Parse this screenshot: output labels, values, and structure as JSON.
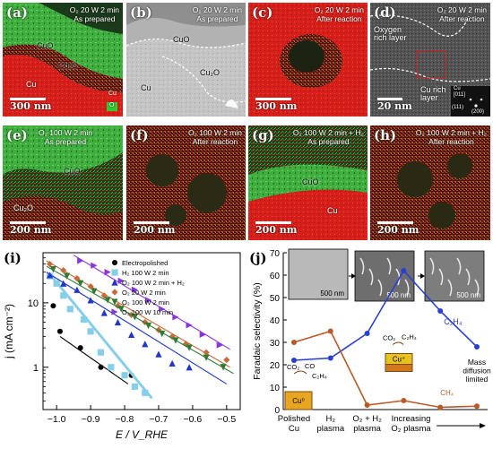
{
  "panels": [
    {
      "label": "(a)",
      "caption_l1": "O₂ 20 W 2 min",
      "caption_l2": "As prepared",
      "scale": "300 nm",
      "phases": {
        "cuo": "CuO",
        "cu2o": "Cu₂O",
        "cu": "Cu"
      },
      "legend": {
        "cu": "Cu",
        "o": "O"
      }
    },
    {
      "label": "(b)",
      "caption_l1": "O₂ 20 W 2 min",
      "caption_l2": "As prepared",
      "phases": {
        "cuo": "CuO",
        "cu2o": "Cu₂O",
        "cu": "Cu"
      }
    },
    {
      "label": "(c)",
      "caption_l1": "O₂ 20 W 2 min",
      "caption_l2": "After reaction",
      "scale": "300 nm"
    },
    {
      "label": "(d)",
      "caption_l1": "O₂ 20 W 2 min",
      "caption_l2": "After reaction",
      "scale": "20 nm",
      "notes": {
        "oxy1": "Oxygen",
        "oxy2": "rich layer",
        "curich1": "Cu rich",
        "curich2": "layer",
        "fft_cu": "Cu",
        "fft_zone": "[011]",
        "fft_111": "(111)",
        "fft_200": "(200)"
      }
    },
    {
      "label": "(e)",
      "caption_l1": "O₂ 100 W 2 min",
      "caption_l2": "As prepared",
      "scale": "200 nm",
      "phases": {
        "cuo": "CuO",
        "cu2o": "Cu₂O"
      }
    },
    {
      "label": "(f)",
      "caption_l1": "O₂ 100 W 2 min",
      "caption_l2": "After reaction",
      "scale": "200 nm"
    },
    {
      "label": "(g)",
      "caption_l1": "O₂ 100 W 2 min + H₂",
      "caption_l2": "As prepared",
      "scale": "200 nm",
      "phases": {
        "cuo": "CuO",
        "cu": "Cu"
      }
    },
    {
      "label": "(h)",
      "caption_l1": "O₂ 100 W 2 min + H₂",
      "caption_l2": "After reaction",
      "scale": "200 nm"
    }
  ],
  "chart_data": [
    {
      "label": "(i)",
      "type": "scatter",
      "xlabel": "E / V_RHE",
      "ylabel": "j (mA cm⁻²)",
      "xlim": [
        -1.04,
        -0.46
      ],
      "ylim": [
        0.22,
        60
      ],
      "yscale": "log",
      "xticks": [
        -1.0,
        -0.9,
        -0.8,
        -0.7,
        -0.6,
        -0.5
      ],
      "xtick_labels": [
        "−1.0",
        "−0.9",
        "−0.8",
        "−0.7",
        "−0.6",
        "−0.5"
      ],
      "yticks": [
        1,
        10
      ],
      "ytick_labels": [
        "1",
        "10"
      ],
      "legend_position": "top-right",
      "series": [
        {
          "name": "Electropolished",
          "color": "#000000",
          "marker": "circle",
          "x": [
            -1.01,
            -0.99,
            -0.93,
            -0.87,
            -0.78
          ],
          "y": [
            9,
            3.6,
            2.0,
            1.0,
            0.75
          ],
          "fit": [
            [
              -0.99,
              3.0
            ],
            [
              -0.79,
              0.55
            ]
          ]
        },
        {
          "name": "H₂ 100 W 2 min",
          "color": "#87cfe8",
          "marker": "square",
          "x": [
            -1.02,
            -1.0,
            -0.98,
            -0.96,
            -0.92,
            -0.9,
            -0.87,
            -0.84,
            -0.8,
            -0.77,
            -0.74
          ],
          "y": [
            26,
            20,
            13,
            8,
            5.5,
            3.6,
            1.7,
            1.0,
            0.75,
            0.5,
            0.4
          ],
          "fit": [
            [
              -1.02,
              28
            ],
            [
              -0.72,
              0.33
            ]
          ]
        },
        {
          "name": "O₂ 100 W 2 min + H₂",
          "color": "#1f36c9",
          "marker": "triangle-up",
          "x": [
            -1.02,
            -0.98,
            -0.94,
            -0.9,
            -0.86,
            -0.82,
            -0.78,
            -0.74,
            -0.7,
            -0.66,
            -0.61
          ],
          "y": [
            27,
            20,
            16,
            11,
            7,
            5,
            3.2,
            2.3,
            1.6,
            1.15,
            1.0
          ],
          "fit": [
            [
              -1.03,
              30
            ],
            [
              -0.5,
              0.55
            ]
          ]
        },
        {
          "name": "O₂ 20 W 2 min",
          "color": "#c46c3c",
          "marker": "diamond",
          "x": [
            -1.02,
            -0.98,
            -0.94,
            -0.9,
            -0.86,
            -0.82,
            -0.78,
            -0.74,
            -0.7,
            -0.66,
            -0.62,
            -0.56,
            -0.5
          ],
          "y": [
            40,
            32,
            24,
            18,
            13,
            9,
            6.5,
            5,
            3.8,
            3.0,
            2.3,
            1.7,
            1.3
          ],
          "fit": [
            [
              -1.03,
              45
            ],
            [
              -0.49,
              1.0
            ]
          ]
        },
        {
          "name": "O₂ 100 W 2 min",
          "color": "#2f7a35",
          "marker": "triangle-down",
          "x": [
            -1.01,
            -0.97,
            -0.93,
            -0.89,
            -0.85,
            -0.81,
            -0.77,
            -0.73,
            -0.69,
            -0.65,
            -0.61,
            -0.56,
            -0.51
          ],
          "y": [
            33,
            26,
            20,
            15,
            11,
            8,
            6,
            4.4,
            3.3,
            2.6,
            2.0,
            1.4,
            1.0
          ],
          "fit": [
            [
              -1.03,
              37
            ],
            [
              -0.48,
              0.8
            ]
          ]
        },
        {
          "name": "O₂ 100 W 10 min",
          "color": "#8a35d8",
          "marker": "triangle-right",
          "x": [
            -0.93,
            -0.89,
            -0.85,
            -0.81,
            -0.77,
            -0.73,
            -0.69,
            -0.65,
            -0.61,
            -0.57,
            -0.52
          ],
          "y": [
            45,
            38,
            30,
            22,
            16,
            11,
            8,
            6,
            4.5,
            3.2,
            2.2
          ],
          "fit": [
            [
              -0.95,
              55
            ],
            [
              -0.49,
              1.9
            ]
          ]
        }
      ]
    },
    {
      "label": "(j)",
      "type": "line",
      "ylabel": "Faradaic selectivity (%)",
      "ylim": [
        0,
        70
      ],
      "yticks": [
        0,
        10,
        20,
        30,
        40,
        50,
        60,
        70
      ],
      "categories": [
        "Polished Cu",
        "H₂ plasma",
        "O₂ + H₂ plasma",
        "Increasing O₂ plasma"
      ],
      "category_lines": [
        [
          "Polished",
          "Cu"
        ],
        [
          "H₂",
          "plasma"
        ],
        [
          "O₂ + H₂",
          "plasma"
        ],
        [
          "Increasing",
          "O₂ plasma"
        ]
      ],
      "x": [
        0,
        1,
        2,
        3,
        4,
        5
      ],
      "series": [
        {
          "name": "C₂H₄",
          "color": "#2a3fd1",
          "values": [
            22,
            23,
            34,
            62,
            44,
            28
          ]
        },
        {
          "name": "CH₄",
          "color": "#b85a28",
          "values": [
            30,
            35,
            2,
            4,
            1,
            1.5
          ]
        }
      ],
      "annotations": {
        "c2h4": "C₂H₄",
        "ch4": "CH₄",
        "mass1": "Mass",
        "mass2": "diffusion",
        "mass3": "limited",
        "schem_a": {
          "co2": "CO₂",
          "co": "CO",
          "c2h4": "C₂H₄",
          "cu": "Cu⁰"
        },
        "schem_b": {
          "co2": "CO₂",
          "c2h4": "C₂H₄",
          "cu": "Cu⁺"
        },
        "inset_scale": "500 nm"
      }
    }
  ],
  "colors": {
    "cu_map": "#e0201b",
    "o_map": "#2ecc2e",
    "c2h4": "#2a3fd1",
    "ch4": "#b85a28"
  }
}
